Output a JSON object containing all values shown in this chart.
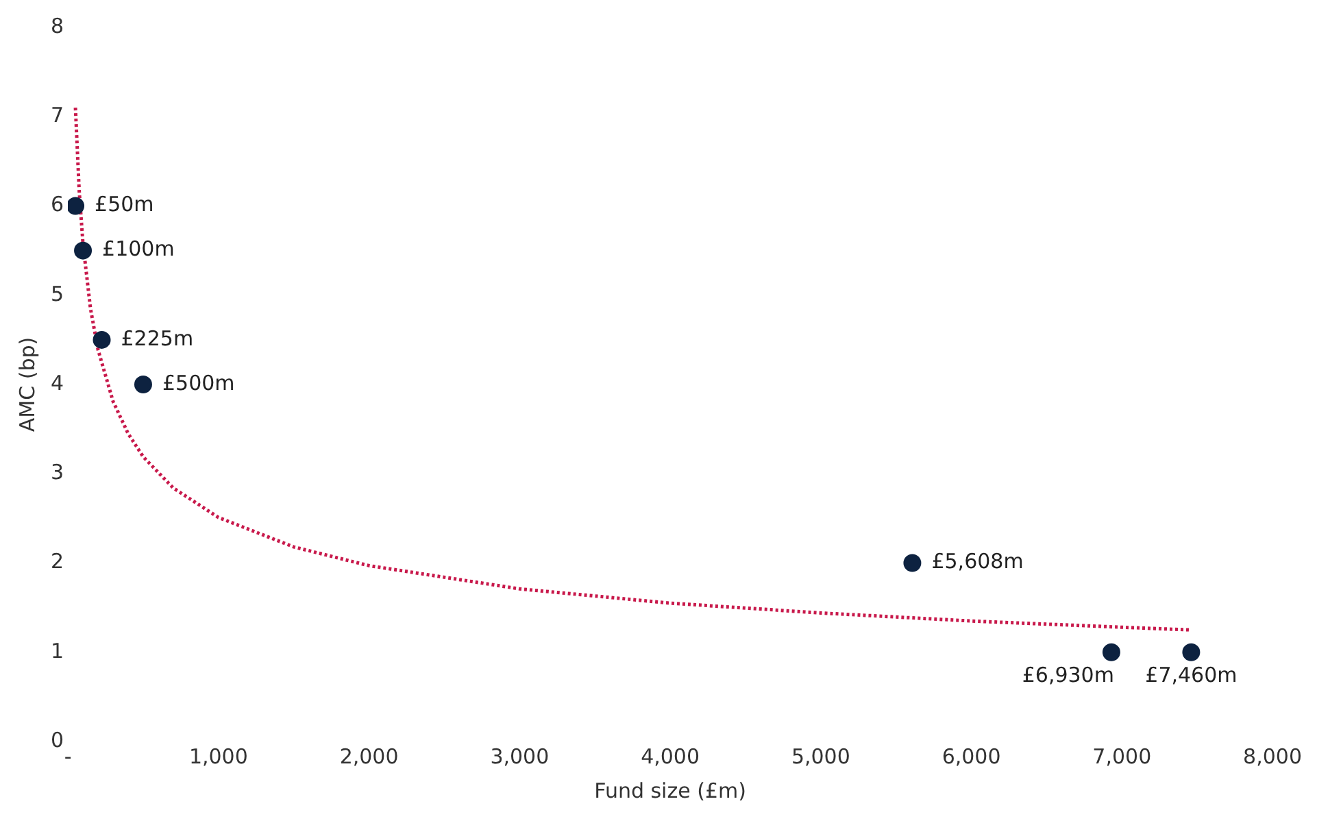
{
  "chart_data": {
    "type": "scatter",
    "xlabel": "Fund size (£m)",
    "ylabel": "AMC (bp)",
    "xlim": [
      0,
      8000
    ],
    "xticks": [
      {
        "value": 0,
        "label": "-"
      },
      {
        "value": 1000,
        "label": "1,000"
      },
      {
        "value": 2000,
        "label": "2,000"
      },
      {
        "value": 3000,
        "label": "3,000"
      },
      {
        "value": 4000,
        "label": "4,000"
      },
      {
        "value": 5000,
        "label": "5,000"
      },
      {
        "value": 6000,
        "label": "6,000"
      },
      {
        "value": 7000,
        "label": "7,000"
      },
      {
        "value": 8000,
        "label": "8,000"
      }
    ],
    "ylim": [
      0,
      8
    ],
    "yticks": [
      0,
      1,
      2,
      3,
      4,
      5,
      6,
      7,
      8
    ],
    "grid": false,
    "legend": false,
    "series": [
      {
        "type": "scatter",
        "color": "#0d2240",
        "marker": "circle",
        "x": [
          50,
          100,
          225,
          500,
          5608,
          6930,
          7460
        ],
        "values": [
          6,
          5.5,
          4.5,
          4,
          2,
          1,
          1
        ]
      },
      {
        "type": "line",
        "color": "#c8194b",
        "marker": "none",
        "line_style": "dotted",
        "x": [
          50,
          75,
          100,
          150,
          200,
          300,
          400,
          500,
          700,
          1000,
          1500,
          2000,
          3000,
          4000,
          5000,
          6000,
          7000,
          7460
        ],
        "values": [
          7.1,
          6.17,
          5.58,
          4.85,
          4.39,
          3.81,
          3.45,
          3.19,
          2.84,
          2.51,
          2.18,
          1.97,
          1.71,
          1.55,
          1.44,
          1.35,
          1.28,
          1.25
        ]
      }
    ],
    "annotations": [
      {
        "text": "£50m",
        "x": 50,
        "y": 6
      },
      {
        "text": "£100m",
        "x": 100,
        "y": 5.5
      },
      {
        "text": "£225m",
        "x": 225,
        "y": 4.5
      },
      {
        "text": "£500m",
        "x": 500,
        "y": 4
      },
      {
        "text": "£5,608m",
        "x": 5608,
        "y": 2
      },
      {
        "text": "£6,930m",
        "x": 6930,
        "y": 1
      },
      {
        "text": "£7,460m",
        "x": 7460,
        "y": 1
      }
    ]
  }
}
